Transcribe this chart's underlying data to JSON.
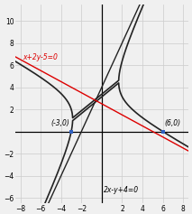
{
  "xlim": [
    -8.5,
    8.5
  ],
  "ylim": [
    -6.5,
    11.5
  ],
  "xticks": [
    -8,
    -6,
    -4,
    -2,
    2,
    4,
    6,
    8
  ],
  "yticks": [
    -6,
    -4,
    -2,
    2,
    4,
    6,
    8,
    10
  ],
  "point1": [
    -3,
    0
  ],
  "point2": [
    6,
    0
  ],
  "label1": "(-3,0)",
  "label2": "(6,0)",
  "line1_label": "x+2y-5=0",
  "line2_label": "2x-y+4=0",
  "line1_color": "#dd0000",
  "hyperbola_color": "#222222",
  "grid_color": "#cccccc",
  "background_color": "#f0f0f0",
  "point_color": "#3060c0",
  "tick_fontsize": 5.5,
  "label_fontsize": 5.5,
  "line_lw": 1.0,
  "hyp_lw": 1.2
}
